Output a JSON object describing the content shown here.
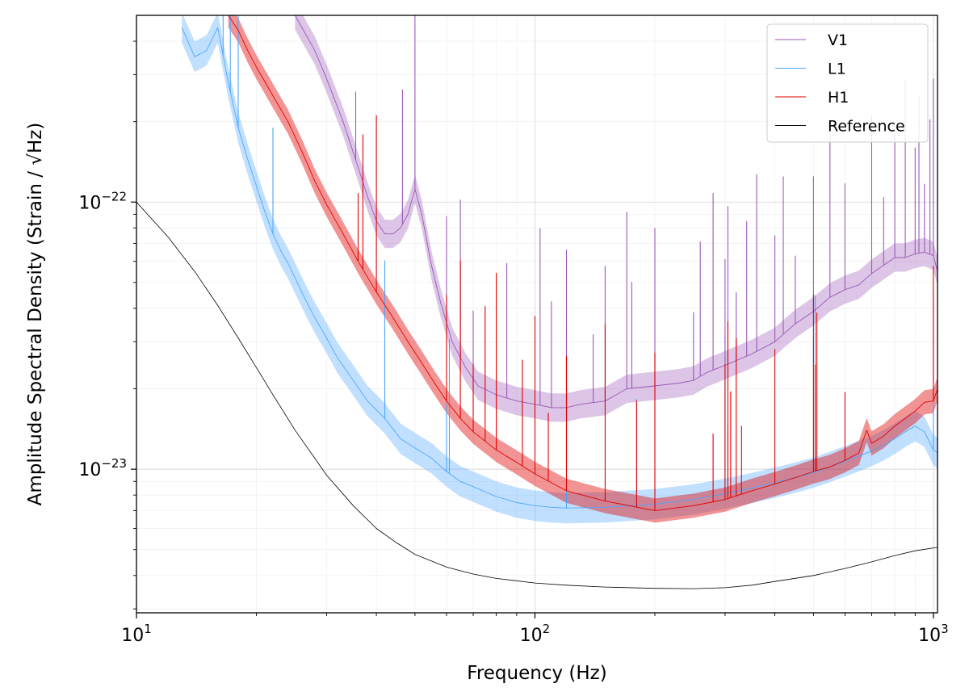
{
  "chart_data": {
    "type": "line",
    "title": "",
    "xlabel": "Frequency (Hz)",
    "ylabel": "Amplitude Spectral Density (Strain / √Hz)",
    "xscale": "log",
    "yscale": "log",
    "xlim": [
      10,
      1024
    ],
    "ylim": [
      2.9e-24,
      5e-22
    ],
    "x_ticks": [
      {
        "value": 10,
        "base": "10",
        "exp": "1"
      },
      {
        "value": 100,
        "base": "10",
        "exp": "2"
      },
      {
        "value": 1000,
        "base": "10",
        "exp": "3"
      }
    ],
    "y_ticks": [
      {
        "value": 1e-23,
        "base": "10",
        "exp": "−23"
      },
      {
        "value": 1e-22,
        "base": "10",
        "exp": "−22"
      }
    ],
    "grid": "on (major and minor, light)",
    "legend": {
      "placement": "upper right",
      "entries": [
        "V1",
        "L1",
        "H1",
        "Reference"
      ]
    },
    "series": [
      {
        "name": "V1",
        "color": "#9b59b6",
        "band": true,
        "x": [
          25,
          28,
          30,
          33,
          36,
          38,
          40,
          42,
          44,
          46,
          48,
          50,
          52,
          55,
          58,
          62,
          67,
          72,
          80,
          90,
          100,
          110,
          120,
          130,
          150,
          160,
          170,
          200,
          230,
          250,
          270,
          300,
          350,
          400,
          430,
          450,
          500,
          550,
          600,
          650,
          700,
          750,
          800,
          850,
          900,
          950,
          1000,
          1024
        ],
        "y": [
          5e-22,
          3.7e-22,
          2.9e-22,
          2e-22,
          1.35e-22,
          1.05e-22,
          8.5e-23,
          7.6e-23,
          7.6e-23,
          8e-23,
          9e-23,
          1.12e-22,
          9e-23,
          5.8e-23,
          4.2e-23,
          3e-23,
          2.4e-23,
          2.05e-23,
          1.9e-23,
          1.8e-23,
          1.75e-23,
          1.7e-23,
          1.7e-23,
          1.75e-23,
          1.8e-23,
          1.9e-23,
          2e-23,
          2.05e-23,
          2.1e-23,
          2.15e-23,
          2.3e-23,
          2.45e-23,
          2.7e-23,
          3e-23,
          3.3e-23,
          3.5e-23,
          3.9e-23,
          4.4e-23,
          4.7e-23,
          4.9e-23,
          5.4e-23,
          5.8e-23,
          6.2e-23,
          6.2e-23,
          6.4e-23,
          6.5e-23,
          6.3e-23,
          5.5e-23
        ],
        "lines_hz": [
          35.5,
          46.5,
          50,
          60,
          65,
          70,
          85,
          103,
          110,
          120,
          140,
          150,
          170,
          175,
          200,
          250,
          260,
          280,
          300,
          305,
          320,
          340,
          360,
          400,
          420,
          450,
          500,
          550,
          600,
          700,
          750,
          800,
          850,
          900,
          920,
          950,
          980,
          1000
        ]
      },
      {
        "name": "L1",
        "color": "#4da6ff",
        "band": true,
        "x": [
          13,
          14,
          15,
          16,
          17,
          18,
          19,
          20,
          21,
          22,
          23,
          24,
          25,
          26,
          27,
          28,
          30,
          32,
          35,
          38,
          42,
          46,
          50,
          55,
          60,
          65,
          70,
          80,
          90,
          100,
          110,
          120,
          150,
          200,
          250,
          300,
          350,
          400,
          450,
          500,
          550,
          600,
          650,
          700,
          750,
          800,
          850,
          900,
          950,
          1000,
          1024
        ],
        "y": [
          4.5e-22,
          3.5e-22,
          3.7e-22,
          4.5e-22,
          2.8e-22,
          1.9e-22,
          1.45e-22,
          1.15e-22,
          9.2e-23,
          7.6e-23,
          6.6e-23,
          5.9e-23,
          5.2e-23,
          4.6e-23,
          4.1e-23,
          3.7e-23,
          3.1e-23,
          2.6e-23,
          2.15e-23,
          1.8e-23,
          1.55e-23,
          1.3e-23,
          1.2e-23,
          1.1e-23,
          9.8e-24,
          9e-24,
          8.6e-24,
          7.9e-24,
          7.5e-24,
          7.3e-24,
          7.2e-24,
          7.15e-24,
          7.2e-24,
          7.4e-24,
          7.7e-24,
          8.1e-24,
          8.5e-24,
          8.9e-24,
          9.3e-24,
          9.7e-24,
          1.02e-23,
          1.07e-23,
          1.12e-23,
          1.17e-23,
          1.23e-23,
          1.3e-23,
          1.38e-23,
          1.45e-23,
          1.38e-23,
          1.18e-23,
          1.15e-23
        ],
        "lines_hz": [
          16.5,
          17.2,
          18,
          22,
          42,
          60,
          61,
          120,
          180,
          300,
          305,
          500,
          505,
          510,
          1000
        ]
      },
      {
        "name": "H1",
        "color": "#e00000",
        "band": true,
        "x": [
          17,
          18,
          19,
          20,
          22,
          24,
          26,
          28,
          30,
          33,
          36,
          40,
          44,
          48,
          52,
          56,
          60,
          65,
          70,
          80,
          90,
          100,
          110,
          120,
          150,
          200,
          250,
          300,
          350,
          400,
          450,
          500,
          550,
          600,
          650,
          680,
          700,
          750,
          800,
          850,
          900,
          950,
          1000,
          1024
        ],
        "y": [
          5e-22,
          4.4e-22,
          3.7e-22,
          3.2e-22,
          2.5e-22,
          2e-22,
          1.55e-22,
          1.2e-22,
          9.8e-23,
          7.6e-23,
          6e-23,
          4.6e-23,
          3.7e-23,
          3e-23,
          2.5e-23,
          2.1e-23,
          1.8e-23,
          1.55e-23,
          1.38e-23,
          1.18e-23,
          1.06e-23,
          9.6e-24,
          8.9e-24,
          8.3e-24,
          7.6e-24,
          7e-24,
          7.3e-24,
          7.7e-24,
          8.3e-24,
          8.8e-24,
          9.3e-24,
          9.8e-24,
          1.02e-23,
          1.08e-23,
          1.15e-23,
          1.4e-23,
          1.25e-23,
          1.33e-23,
          1.45e-23,
          1.55e-23,
          1.65e-23,
          1.78e-23,
          1.8e-23,
          2e-23
        ],
        "lines_hz": [
          36,
          37,
          40,
          60,
          65,
          70,
          75,
          80,
          93,
          100,
          108,
          120,
          150,
          180,
          200,
          280,
          300,
          305,
          310,
          320,
          330,
          400,
          500,
          505,
          510,
          600,
          1000
        ]
      },
      {
        "name": "Reference",
        "color": "#000000",
        "band": false,
        "x": [
          10,
          12,
          14,
          16,
          18,
          20,
          22,
          25,
          28,
          30,
          35,
          40,
          45,
          50,
          60,
          70,
          80,
          100,
          120,
          150,
          200,
          250,
          300,
          350,
          400,
          500,
          600,
          700,
          800,
          900,
          1024
        ],
        "y": [
          1e-22,
          7.4e-23,
          5.5e-23,
          4.1e-23,
          3.1e-23,
          2.4e-23,
          1.9e-23,
          1.4e-23,
          1.1e-23,
          9.5e-24,
          7.3e-24,
          6e-24,
          5.3e-24,
          4.8e-24,
          4.3e-24,
          4.05e-24,
          3.9e-24,
          3.75e-24,
          3.68e-24,
          3.62e-24,
          3.58e-24,
          3.57e-24,
          3.6e-24,
          3.68e-24,
          3.8e-24,
          4e-24,
          4.25e-24,
          4.5e-24,
          4.75e-24,
          4.95e-24,
          5.1e-24
        ]
      }
    ]
  }
}
